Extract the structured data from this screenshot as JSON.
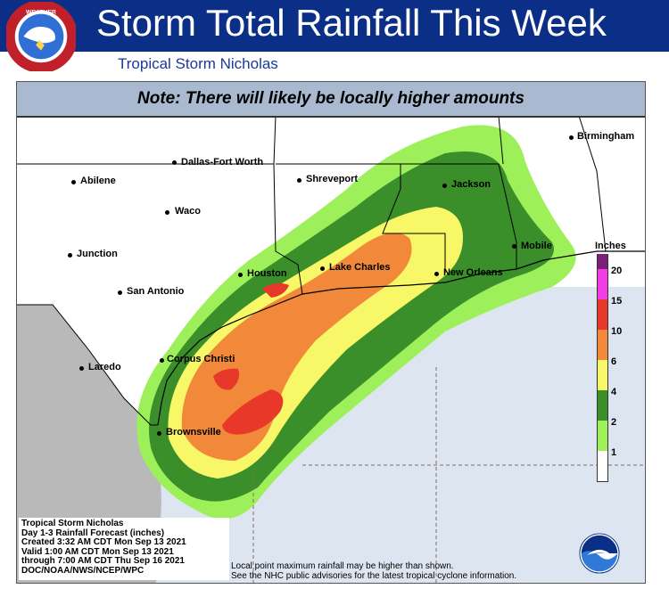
{
  "header": {
    "title": "Storm Total Rainfall This Week",
    "subtitle": "Tropical Storm Nicholas",
    "logo_text": "NATIONAL WEATHER SERVICE"
  },
  "note": "Note: There will likely be locally higher amounts",
  "cities": [
    {
      "name": "Birmingham"
    },
    {
      "name": "Dallas-Fort Worth"
    },
    {
      "name": "Abilene"
    },
    {
      "name": "Shreveport"
    },
    {
      "name": "Jackson"
    },
    {
      "name": "Waco"
    },
    {
      "name": "Junction"
    },
    {
      "name": "Mobile"
    },
    {
      "name": "Houston"
    },
    {
      "name": "Lake Charles"
    },
    {
      "name": "New Orleans"
    },
    {
      "name": "San Antonio"
    },
    {
      "name": "Corpus Christi"
    },
    {
      "name": "Laredo"
    },
    {
      "name": "Brownsville"
    }
  ],
  "legend": {
    "title": "Inches",
    "levels": [
      {
        "label": "20",
        "color": "#7a1f7a"
      },
      {
        "label": "15",
        "color": "#f33be6"
      },
      {
        "label": "10",
        "color": "#e8382a"
      },
      {
        "label": "6",
        "color": "#f1883a"
      },
      {
        "label": "4",
        "color": "#f7f767"
      },
      {
        "label": "2",
        "color": "#3a8f2a"
      },
      {
        "label": "1",
        "color": "#9ef05a"
      },
      {
        "label": "",
        "color": "#ffffff"
      }
    ]
  },
  "colors": {
    "gulf": "#dde6f0",
    "mexico": "#b9b9b9",
    "land": "#ffffff",
    "header_band": "#0b2f86"
  },
  "info_box": {
    "line1": "Tropical Storm Nicholas",
    "line2": "Day 1-3 Rainfall Forecast (inches)",
    "line3": "Created 3:32 AM CDT Mon Sep 13 2021",
    "line4": "Valid 1:00 AM CDT Mon Sep 13 2021",
    "line5": "through 7:00 AM CDT Thu Sep 16 2021",
    "line6": "DOC/NOAA/NWS/NCEP/WPC"
  },
  "disclaimer": {
    "line1": "Local point maximum rainfall may be higher than shown.",
    "line2": "See the NHC public advisories for the latest tropical cyclone information."
  },
  "noaa_logo": "NOAA"
}
